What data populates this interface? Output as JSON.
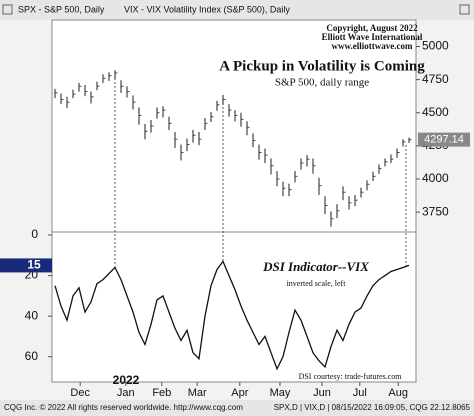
{
  "header": {
    "left": "SPX - S&P 500, Daily",
    "right": "VIX - VIX Volatility Index (S&P 500), Daily"
  },
  "credits": [
    "Copyright, August 2022",
    "Elliott Wave International",
    "www.elliottwave.com"
  ],
  "footer": {
    "left": "CQG Inc. © 2022 All rights reserved worldwide. http://www.cqg.com",
    "right": "SPX,D | VIX,D | 08/15/2022 16:09:05, CQG 22.12.8065"
  },
  "chart_data": [
    {
      "type": "ohlc",
      "title": "A Pickup in Volatility is Coming",
      "subtitle": "S&P 500, daily range",
      "ylim": [
        3600,
        5200
      ],
      "yticks": [
        3750,
        4000,
        4250,
        4500,
        4750,
        5000
      ],
      "xlim": [
        0,
        59
      ],
      "series": [
        {
          "name": "SPX",
          "color": "#444444",
          "high": [
            4680,
            4645,
            4620,
            4675,
            4725,
            4710,
            4660,
            4735,
            4790,
            4805,
            4818,
            4745,
            4700,
            4630,
            4540,
            4415,
            4445,
            4540,
            4550,
            4470,
            4355,
            4260,
            4305,
            4370,
            4355,
            4460,
            4505,
            4590,
            4635,
            4565,
            4520,
            4500,
            4435,
            4345,
            4260,
            4230,
            4155,
            4060,
            3980,
            3965,
            4060,
            4155,
            4180,
            4155,
            4010,
            3870,
            3755,
            3810,
            3945,
            3870,
            3880,
            3935,
            3990,
            4055,
            4110,
            4155,
            4185,
            4230,
            4300,
            4312
          ],
          "low": [
            4610,
            4565,
            4535,
            4610,
            4660,
            4625,
            4570,
            4670,
            4725,
            4740,
            4755,
            4650,
            4615,
            4525,
            4410,
            4300,
            4350,
            4455,
            4465,
            4370,
            4235,
            4140,
            4210,
            4275,
            4255,
            4370,
            4430,
            4515,
            4560,
            4470,
            4435,
            4395,
            4330,
            4240,
            4145,
            4120,
            4035,
            3945,
            3870,
            3870,
            3975,
            4070,
            4095,
            4040,
            3880,
            3735,
            3640,
            3705,
            3840,
            3770,
            3795,
            3860,
            3915,
            3985,
            4040,
            4095,
            4120,
            4160,
            4245,
            4272
          ],
          "close": [
            4650,
            4600,
            4580,
            4640,
            4700,
            4660,
            4620,
            4700,
            4760,
            4780,
            4800,
            4700,
            4660,
            4580,
            4480,
            4360,
            4400,
            4500,
            4520,
            4420,
            4300,
            4200,
            4260,
            4330,
            4300,
            4420,
            4470,
            4560,
            4600,
            4520,
            4480,
            4450,
            4390,
            4290,
            4200,
            4180,
            4100,
            4000,
            3930,
            3920,
            4020,
            4120,
            4150,
            4100,
            3950,
            3800,
            3700,
            3760,
            3900,
            3820,
            3840,
            3900,
            3960,
            4020,
            4080,
            4130,
            4150,
            4200,
            4280,
            4297.14
          ]
        }
      ]
    },
    {
      "type": "line",
      "title": "DSI Indicator--VIX",
      "subtitle": "inverted scale, left",
      "note": "DSI courtesy: trade-futures.com",
      "inverted": true,
      "ylim": [
        0,
        70
      ],
      "yticks": [
        0,
        20,
        40,
        60
      ],
      "xlim": [
        0,
        59
      ],
      "xticks": [
        {
          "value": 4.2,
          "label": "Dec"
        },
        {
          "value": 11.8,
          "label": "Jan"
        },
        {
          "value": 17.8,
          "label": "Feb"
        },
        {
          "value": 23.7,
          "label": "Mar"
        },
        {
          "value": 30.8,
          "label": "Apr"
        },
        {
          "value": 37.5,
          "label": "May"
        },
        {
          "value": 44.5,
          "label": "Jun"
        },
        {
          "value": 50.8,
          "label": "Jul"
        },
        {
          "value": 57.2,
          "label": "Aug"
        }
      ],
      "year_label": "2022",
      "series": [
        {
          "name": "DSI",
          "color": "#111111",
          "values": [
            25,
            35,
            42,
            30,
            26,
            38,
            33,
            24,
            22,
            19,
            16,
            22,
            30,
            38,
            48,
            54,
            44,
            32,
            30,
            38,
            46,
            52,
            47,
            58,
            61,
            40,
            25,
            17,
            13,
            20,
            27,
            35,
            42,
            48,
            54,
            50,
            58,
            66,
            60,
            48,
            37,
            42,
            50,
            58,
            62,
            65,
            55,
            47,
            52,
            44,
            38,
            36,
            30,
            25,
            22,
            20,
            18,
            17,
            16,
            15
          ]
        }
      ]
    }
  ]
}
